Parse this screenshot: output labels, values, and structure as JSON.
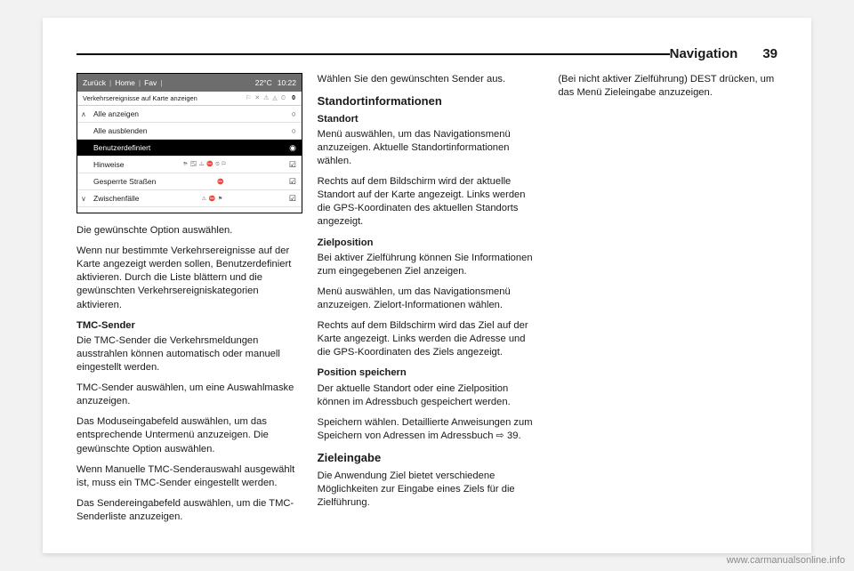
{
  "header": {
    "section": "Navigation",
    "page_number": "39"
  },
  "screenshot": {
    "topbar": {
      "back": "Zurück",
      "home": "Home",
      "fav": "Fav",
      "temp": "22°C",
      "time": "10:22"
    },
    "subheader": {
      "title": "Verkehrsereignisse auf Karte anzeigen",
      "icons": "⚐ ✕ ⚠ ◬ ⏲",
      "count": "0"
    },
    "rows": [
      {
        "label": "Alle anzeigen",
        "mark": "○",
        "arrow": "∧"
      },
      {
        "label": "Alle ausblenden",
        "mark": "○"
      },
      {
        "label": "Benutzerdefiniert",
        "mark": "◉",
        "selected": true
      },
      {
        "label": "Hinweise",
        "mini": "⛈ 🌫 ⚠ ⛔ ⏲ ⚐",
        "mark": "☑"
      },
      {
        "label": "Gesperrte Straßen",
        "mini": "⛔",
        "mark": "☑"
      },
      {
        "label": "Zwischenfälle",
        "mini": "⚠ ⛔ ⚑",
        "mark": "☑",
        "arrow": "∨"
      }
    ]
  },
  "col1": {
    "p1": "Die gewünschte Option auswählen.",
    "p2": "Wenn nur bestimmte Verkehrsereig­nisse auf der Karte angezeigt werden sollen, Benutzerdefiniert aktivieren. Durch die Liste blättern und die gewünschten Verkehrsereigniskate­gorien aktivieren.",
    "h_tmc": "TMC-Sender",
    "p3": "Die TMC-Sender die Verkehrsmel­dungen ausstrahlen können automa­tisch oder manuell eingestellt werden.",
    "p4": "TMC-Sender auswählen, um eine Auswahlmaske anzuzeigen."
  },
  "col2": {
    "p1": "Das Moduseingabefeld auswählen, um das entsprechende Untermenü anzuzeigen. Die gewünschte Option auswählen.",
    "p2": "Wenn Manuelle TMC-Senderauswahl ausgewählt ist, muss ein TMC-Sender eingestellt werden.",
    "p3": "Das Sendereingabefeld auswählen, um die TMC-Senderliste anzuzeigen.",
    "p4": "Wählen Sie den gewünschten Sender aus.",
    "h_standort": "Standortinformationen",
    "h_standort2": "Standort",
    "p5": "Menü auswählen, um das Navigationsmenü anzuzeigen. Aktuelle Standortinformationen wählen.",
    "p6": "Rechts auf dem Bildschirm wird der aktuelle Standort auf der Karte ange­zeigt. Links werden die GPS-Koordi­naten des aktuellen Standorts ange­zeigt.",
    "h_zielpos": "Zielposition",
    "p7": "Bei aktiver Zielführung können Sie Informationen zum eingegebenen Ziel anzeigen."
  },
  "col3": {
    "p1a": "Menü auswählen, um das Navigationsmenü anzuzeigen. ",
    "p1b": "Zielort-Informationen wählen.",
    "p2": "Rechts auf dem Bildschirm wird das Ziel auf der Karte angezeigt. Links werden die Adresse und die GPS-Koordinaten des Ziels angezeigt.",
    "h_pos": "Position speichern",
    "p3": "Der aktuelle Standort oder eine Ziel­position können im Adressbuch gespeichert werden.",
    "p4": "Speichern wählen. Detaillierte Anwei­sungen zum Speichern von Adressen im Adressbuch ⇨ 39.",
    "h_ziel": "Zieleingabe",
    "p5": "Die Anwendung Ziel bietet verschie­dene Möglichkeiten zur Eingabe eines Ziels für die Zielführung.",
    "p6": "(Bei nicht aktiver Zielführung) DEST drücken, um das Menü Zieleingabe anzuzeigen."
  },
  "watermark": "www.carmanualsonline.info"
}
